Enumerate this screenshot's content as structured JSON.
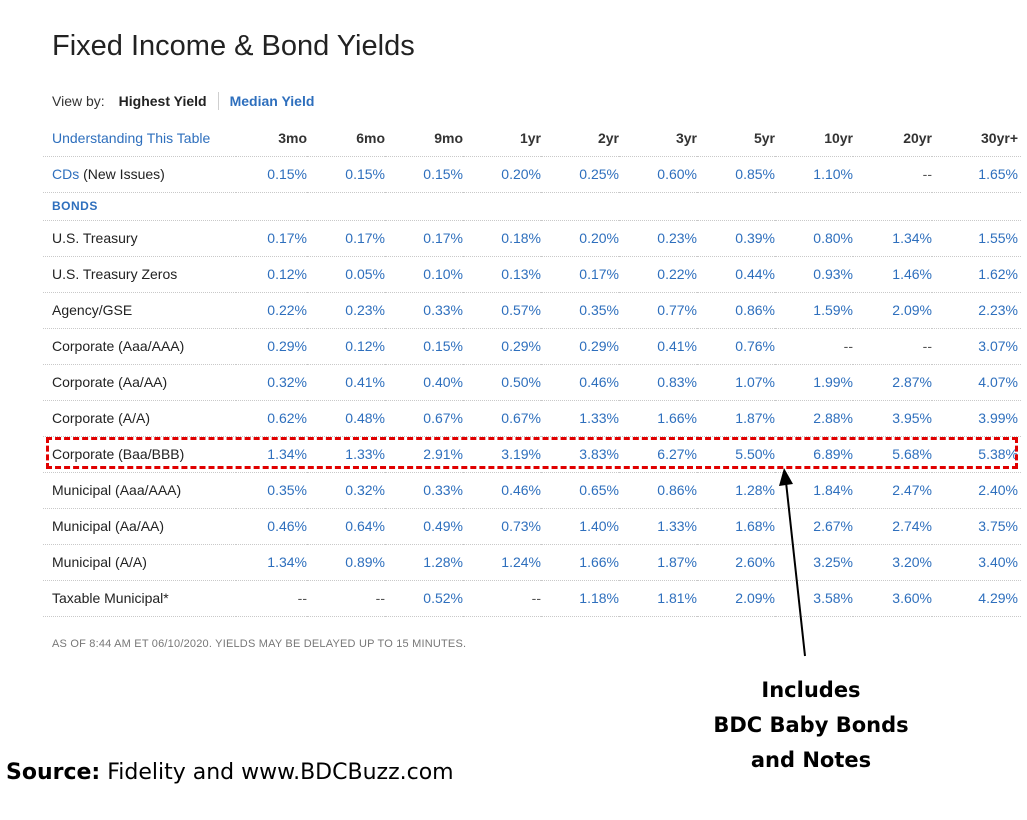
{
  "page": {
    "title": "Fixed Income & Bond Yields",
    "view_by": {
      "label": "View by:",
      "active_option": "Highest Yield",
      "link_option": "Median Yield"
    }
  },
  "table": {
    "header_link": "Understanding This Table",
    "columns": [
      "3mo",
      "6mo",
      "9mo",
      "1yr",
      "2yr",
      "3yr",
      "5yr",
      "10yr",
      "20yr",
      "30yr+"
    ],
    "cds": {
      "label_link": "CDs",
      "label_rest": " (New Issues)",
      "values": [
        "0.15%",
        "0.15%",
        "0.15%",
        "0.20%",
        "0.25%",
        "0.60%",
        "0.85%",
        "1.10%",
        "--",
        "1.65%"
      ]
    },
    "section_label": "BONDS",
    "rows": [
      {
        "label": "U.S. Treasury",
        "values": [
          "0.17%",
          "0.17%",
          "0.17%",
          "0.18%",
          "0.20%",
          "0.23%",
          "0.39%",
          "0.80%",
          "1.34%",
          "1.55%"
        ]
      },
      {
        "label": "U.S. Treasury Zeros",
        "values": [
          "0.12%",
          "0.05%",
          "0.10%",
          "0.13%",
          "0.17%",
          "0.22%",
          "0.44%",
          "0.93%",
          "1.46%",
          "1.62%"
        ]
      },
      {
        "label": "Agency/GSE",
        "values": [
          "0.22%",
          "0.23%",
          "0.33%",
          "0.57%",
          "0.35%",
          "0.77%",
          "0.86%",
          "1.59%",
          "2.09%",
          "2.23%"
        ]
      },
      {
        "label": "Corporate (Aaa/AAA)",
        "values": [
          "0.29%",
          "0.12%",
          "0.15%",
          "0.29%",
          "0.29%",
          "0.41%",
          "0.76%",
          "--",
          "--",
          "3.07%"
        ]
      },
      {
        "label": "Corporate (Aa/AA)",
        "values": [
          "0.32%",
          "0.41%",
          "0.40%",
          "0.50%",
          "0.46%",
          "0.83%",
          "1.07%",
          "1.99%",
          "2.87%",
          "4.07%"
        ]
      },
      {
        "label": "Corporate (A/A)",
        "values": [
          "0.62%",
          "0.48%",
          "0.67%",
          "0.67%",
          "1.33%",
          "1.66%",
          "1.87%",
          "2.88%",
          "3.95%",
          "3.99%"
        ]
      },
      {
        "label": "Corporate (Baa/BBB)",
        "values": [
          "1.34%",
          "1.33%",
          "2.91%",
          "3.19%",
          "3.83%",
          "6.27%",
          "5.50%",
          "6.89%",
          "5.68%",
          "5.38%"
        ]
      },
      {
        "label": "Municipal (Aaa/AAA)",
        "values": [
          "0.35%",
          "0.32%",
          "0.33%",
          "0.46%",
          "0.65%",
          "0.86%",
          "1.28%",
          "1.84%",
          "2.47%",
          "2.40%"
        ]
      },
      {
        "label": "Municipal (Aa/AA)",
        "values": [
          "0.46%",
          "0.64%",
          "0.49%",
          "0.73%",
          "1.40%",
          "1.33%",
          "1.68%",
          "2.67%",
          "2.74%",
          "3.75%"
        ]
      },
      {
        "label": "Municipal (A/A)",
        "values": [
          "1.34%",
          "0.89%",
          "1.28%",
          "1.24%",
          "1.66%",
          "1.87%",
          "2.60%",
          "3.25%",
          "3.20%",
          "3.40%"
        ]
      },
      {
        "label": "Taxable Municipal*",
        "values": [
          "--",
          "--",
          "0.52%",
          "--",
          "1.18%",
          "1.81%",
          "2.09%",
          "3.58%",
          "3.60%",
          "4.29%"
        ]
      }
    ],
    "footnote": "AS OF 8:44 AM ET 06/10/2020. YIELDS MAY BE DELAYED UP TO 15 MINUTES."
  },
  "annotation": {
    "lines": [
      "Includes",
      "BDC Baby Bonds",
      "and Notes"
    ],
    "highlight_color": "#e00000"
  },
  "source": {
    "label": "Source:",
    "text": " Fidelity and www.BDCBuzz.com"
  },
  "colors": {
    "link": "#2e6fbd",
    "text": "#222222"
  }
}
